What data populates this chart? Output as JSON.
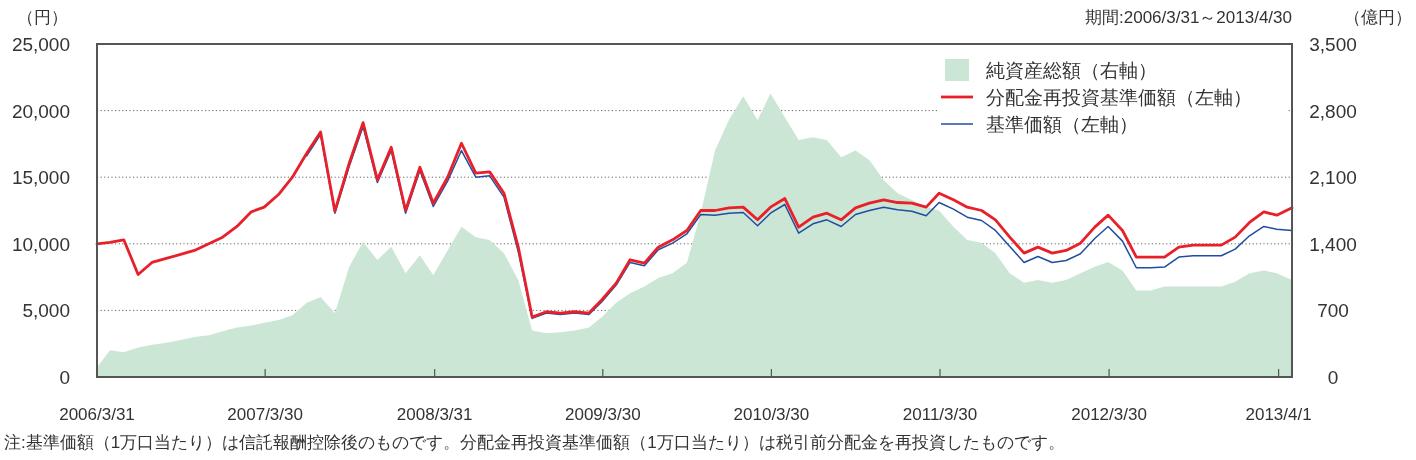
{
  "chart_data": {
    "type": "line",
    "ylabel": "（円）",
    "y2label": "（億円）",
    "annotations": [
      "期間:2006/3/31～2013/4/30",
      "注:基準価額（1万口当たり）は信託報酬控除後のものです。分配金再投資基準価額（1万口当たり）は税引前分配金を再投資したものです。"
    ],
    "xlim": [
      "2006-03-31",
      "2013-04-30"
    ],
    "xticks": [
      {
        "value": "2006-03-31",
        "label": "2006/3/31"
      },
      {
        "value": "2007-03-30",
        "label": "2007/3/30"
      },
      {
        "value": "2008-03-31",
        "label": "2008/3/31"
      },
      {
        "value": "2009-03-30",
        "label": "2009/3/30"
      },
      {
        "value": "2010-03-30",
        "label": "2010/3/30"
      },
      {
        "value": "2011-03-30",
        "label": "2011/3/30"
      },
      {
        "value": "2012-03-30",
        "label": "2012/3/30"
      },
      {
        "value": "2013-04-01",
        "label": "2013/4/1"
      }
    ],
    "ylim": [
      0,
      25000
    ],
    "yticks": [
      0,
      {
        "value": 5000,
        "label": "5,000"
      },
      {
        "value": 10000,
        "label": "10,000"
      },
      {
        "value": 15000,
        "label": "15,000"
      },
      {
        "value": 20000,
        "label": "20,000"
      },
      {
        "value": 25000,
        "label": "25,000"
      }
    ],
    "y2lim": [
      0,
      3500
    ],
    "y2ticks": [
      0,
      700,
      {
        "value": 1400,
        "label": "1,400"
      },
      {
        "value": 2100,
        "label": "2,100"
      },
      {
        "value": 2800,
        "label": "2,800"
      },
      {
        "value": 3500,
        "label": "3,500"
      }
    ],
    "grid": "y",
    "legend": "top right",
    "x": [
      "2006-03-31",
      "2006-04-28",
      "2006-05-28",
      "2006-06-28",
      "2006-07-28",
      "2006-08-28",
      "2006-09-28",
      "2006-10-28",
      "2006-11-28",
      "2006-12-28",
      "2007-01-28",
      "2007-02-28",
      "2007-03-28",
      "2007-04-28",
      "2007-05-28",
      "2007-06-28",
      "2007-07-28",
      "2007-08-28",
      "2007-09-28",
      "2007-10-28",
      "2007-11-28",
      "2007-12-28",
      "2008-01-28",
      "2008-02-28",
      "2008-03-28",
      "2008-04-28",
      "2008-05-28",
      "2008-06-28",
      "2008-07-28",
      "2008-08-28",
      "2008-09-28",
      "2008-10-28",
      "2008-11-28",
      "2008-12-28",
      "2009-01-28",
      "2009-02-28",
      "2009-03-28",
      "2009-04-28",
      "2009-05-28",
      "2009-06-28",
      "2009-07-28",
      "2009-08-28",
      "2009-09-28",
      "2009-10-28",
      "2009-11-28",
      "2009-12-28",
      "2010-01-28",
      "2010-02-28",
      "2010-03-28",
      "2010-04-28",
      "2010-05-28",
      "2010-06-28",
      "2010-07-28",
      "2010-08-28",
      "2010-09-28",
      "2010-10-28",
      "2010-11-28",
      "2010-12-28",
      "2011-01-28",
      "2011-02-28",
      "2011-03-28",
      "2011-04-28",
      "2011-05-28",
      "2011-06-28",
      "2011-07-28",
      "2011-08-28",
      "2011-09-28",
      "2011-10-28",
      "2011-11-28",
      "2011-12-28",
      "2012-01-28",
      "2012-02-28",
      "2012-03-28",
      "2012-04-28",
      "2012-05-28",
      "2012-06-28",
      "2012-07-28",
      "2012-08-28",
      "2012-09-28",
      "2012-10-28",
      "2012-11-28",
      "2012-12-28",
      "2013-01-28",
      "2013-02-28",
      "2013-03-28",
      "2013-04-30"
    ],
    "series": [
      {
        "name": "純資産総額（右軸）",
        "type": "area",
        "axis": "y2",
        "color": "#cce6d5",
        "values": [
          100,
          280,
          260,
          310,
          340,
          360,
          390,
          420,
          440,
          480,
          520,
          540,
          570,
          600,
          650,
          780,
          840,
          670,
          1160,
          1420,
          1230,
          1370,
          1090,
          1280,
          1070,
          1330,
          1580,
          1470,
          1440,
          1300,
          1020,
          490,
          460,
          470,
          490,
          520,
          630,
          780,
          880,
          950,
          1040,
          1090,
          1200,
          1720,
          2380,
          2700,
          2950,
          2700,
          2980,
          2730,
          2490,
          2520,
          2490,
          2310,
          2380,
          2280,
          2070,
          1930,
          1860,
          1790,
          1750,
          1580,
          1440,
          1410,
          1300,
          1090,
          990,
          1020,
          990,
          1020,
          1090,
          1160,
          1210,
          1120,
          910,
          910,
          950,
          950,
          950,
          950,
          950,
          1000,
          1090,
          1120,
          1090,
          1020
        ]
      },
      {
        "name": "分配金再投資基準価額（左軸）",
        "color": "#e8202a",
        "values": [
          10000,
          10100,
          10300,
          7700,
          8600,
          8900,
          9200,
          9500,
          10000,
          10500,
          11300,
          12400,
          12750,
          13700,
          15000,
          16800,
          18400,
          12450,
          16050,
          19100,
          14800,
          17250,
          12500,
          15750,
          13050,
          15000,
          17550,
          15300,
          15400,
          13800,
          9750,
          4500,
          4900,
          4800,
          4900,
          4800,
          5800,
          7050,
          8800,
          8550,
          9750,
          10300,
          11000,
          12500,
          12500,
          12700,
          12750,
          11800,
          12750,
          13400,
          11250,
          12000,
          12300,
          11800,
          12700,
          13050,
          13300,
          13100,
          13050,
          12750,
          13800,
          13300,
          12750,
          12500,
          11800,
          10500,
          9300,
          9750,
          9300,
          9500,
          10050,
          11250,
          12150,
          11000,
          9000,
          9000,
          9000,
          9750,
          9900,
          9900,
          9900,
          10500,
          11600,
          12400,
          12150,
          12700
        ]
      },
      {
        "name": "基準価額（左軸）",
        "color": "#1f4e9f",
        "values": [
          null,
          null,
          null,
          null,
          null,
          null,
          null,
          null,
          null,
          null,
          null,
          null,
          null,
          null,
          null,
          16600,
          18200,
          12300,
          15800,
          18800,
          14600,
          17000,
          12300,
          15500,
          12800,
          14700,
          17000,
          15000,
          15100,
          13500,
          9400,
          4400,
          4800,
          4700,
          4800,
          4700,
          5650,
          6900,
          8600,
          8350,
          9550,
          10050,
          10750,
          12200,
          12150,
          12300,
          12350,
          11350,
          12300,
          12950,
          10800,
          11500,
          11800,
          11300,
          12200,
          12500,
          12750,
          12550,
          12450,
          12100,
          13100,
          12600,
          12000,
          11750,
          11000,
          9800,
          8600,
          9050,
          8600,
          8750,
          9250,
          10400,
          11300,
          10200,
          8200,
          8200,
          8250,
          9000,
          9100,
          9100,
          9100,
          9600,
          10600,
          11300,
          11100,
          11000
        ]
      }
    ]
  }
}
